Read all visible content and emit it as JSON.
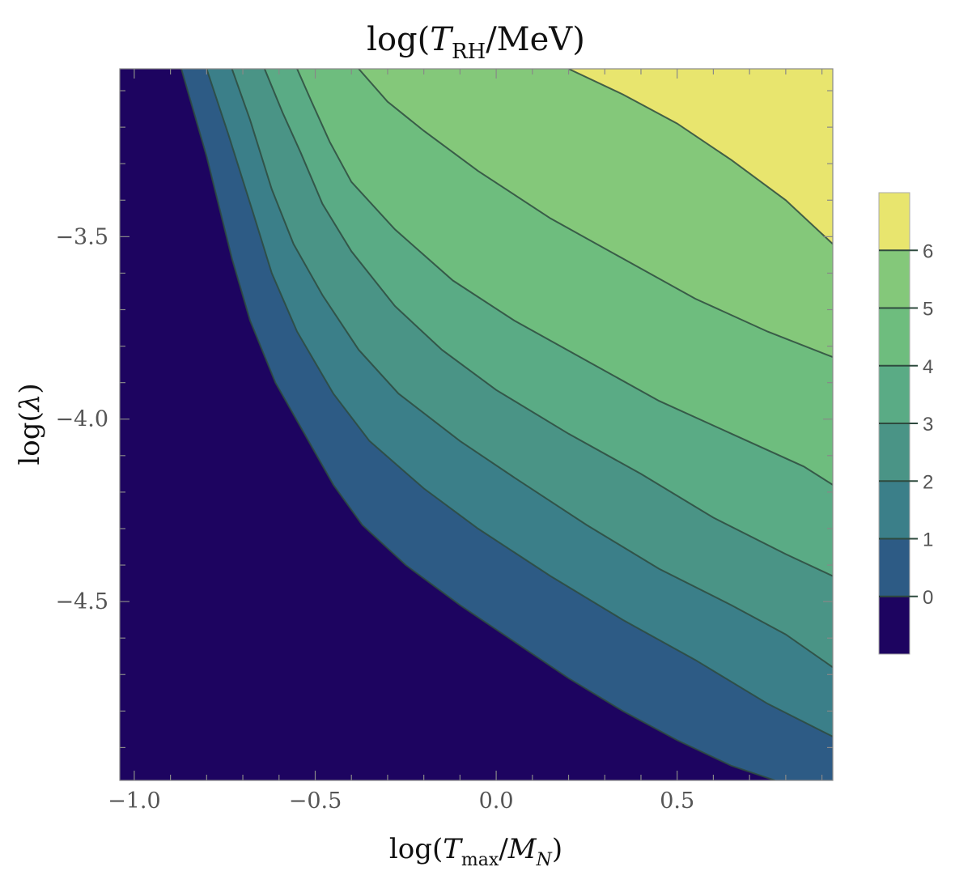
{
  "chart_data": {
    "type": "contour",
    "title": "log(T_RH/MeV)",
    "xlabel": "log(T_max/M_N)",
    "ylabel": "log(λ)",
    "xlim": [
      -1.04,
      0.93
    ],
    "ylim": [
      -4.99,
      -3.04
    ],
    "x_ticks": [
      -1.0,
      -0.5,
      0.0,
      0.5
    ],
    "x_tick_labels": [
      "−1.0",
      "−0.5",
      "0.0",
      "0.5"
    ],
    "y_ticks": [
      -3.5,
      -4.0,
      -4.5
    ],
    "y_tick_labels": [
      "−3.5",
      "−4.0",
      "−4.5"
    ],
    "contour_levels": [
      0,
      1,
      2,
      3,
      4,
      5,
      6
    ],
    "colorbar": {
      "ticks": [
        0,
        1,
        2,
        3,
        4,
        5,
        6
      ],
      "tick_labels": [
        "0",
        "1",
        "2",
        "3",
        "4",
        "5",
        "6"
      ],
      "range": [
        -1,
        7
      ]
    },
    "region_colors": [
      "#1d0460",
      "#2d5b85",
      "#3b7f89",
      "#4a9486",
      "#5aab85",
      "#6ebd7e",
      "#84c87a",
      "#e8e56e"
    ],
    "contours": [
      {
        "level": 0,
        "points": [
          [
            -0.87,
            -3.04
          ],
          [
            -0.8,
            -3.28
          ],
          [
            -0.73,
            -3.56
          ],
          [
            -0.68,
            -3.73
          ],
          [
            -0.61,
            -3.9
          ],
          [
            -0.53,
            -4.04
          ],
          [
            -0.45,
            -4.18
          ],
          [
            -0.37,
            -4.29
          ],
          [
            -0.25,
            -4.4
          ],
          [
            -0.1,
            -4.51
          ],
          [
            0.05,
            -4.61
          ],
          [
            0.2,
            -4.71
          ],
          [
            0.35,
            -4.8
          ],
          [
            0.5,
            -4.88
          ],
          [
            0.65,
            -4.95
          ],
          [
            0.77,
            -4.99
          ]
        ]
      },
      {
        "level": 1,
        "points": [
          [
            -0.8,
            -3.04
          ],
          [
            -0.74,
            -3.22
          ],
          [
            -0.67,
            -3.44
          ],
          [
            -0.62,
            -3.6
          ],
          [
            -0.55,
            -3.76
          ],
          [
            -0.45,
            -3.93
          ],
          [
            -0.35,
            -4.06
          ],
          [
            -0.2,
            -4.19
          ],
          [
            -0.05,
            -4.3
          ],
          [
            0.15,
            -4.43
          ],
          [
            0.35,
            -4.55
          ],
          [
            0.55,
            -4.66
          ],
          [
            0.75,
            -4.78
          ],
          [
            0.93,
            -4.87
          ]
        ]
      },
      {
        "level": 2,
        "points": [
          [
            -0.73,
            -3.04
          ],
          [
            -0.68,
            -3.18
          ],
          [
            -0.62,
            -3.37
          ],
          [
            -0.56,
            -3.52
          ],
          [
            -0.48,
            -3.66
          ],
          [
            -0.38,
            -3.81
          ],
          [
            -0.27,
            -3.93
          ],
          [
            -0.1,
            -4.06
          ],
          [
            0.05,
            -4.16
          ],
          [
            0.25,
            -4.29
          ],
          [
            0.45,
            -4.41
          ],
          [
            0.65,
            -4.51
          ],
          [
            0.8,
            -4.59
          ],
          [
            0.93,
            -4.68
          ]
        ]
      },
      {
        "level": 3,
        "points": [
          [
            -0.64,
            -3.04
          ],
          [
            -0.59,
            -3.16
          ],
          [
            -0.54,
            -3.27
          ],
          [
            -0.48,
            -3.41
          ],
          [
            -0.4,
            -3.54
          ],
          [
            -0.28,
            -3.69
          ],
          [
            -0.15,
            -3.81
          ],
          [
            0.0,
            -3.92
          ],
          [
            0.2,
            -4.04
          ],
          [
            0.4,
            -4.15
          ],
          [
            0.6,
            -4.27
          ],
          [
            0.8,
            -4.37
          ],
          [
            0.93,
            -4.43
          ]
        ]
      },
      {
        "level": 4,
        "points": [
          [
            -0.55,
            -3.04
          ],
          [
            -0.51,
            -3.13
          ],
          [
            -0.46,
            -3.24
          ],
          [
            -0.4,
            -3.35
          ],
          [
            -0.28,
            -3.48
          ],
          [
            -0.12,
            -3.62
          ],
          [
            0.05,
            -3.73
          ],
          [
            0.25,
            -3.84
          ],
          [
            0.45,
            -3.95
          ],
          [
            0.65,
            -4.04
          ],
          [
            0.85,
            -4.13
          ],
          [
            0.93,
            -4.18
          ]
        ]
      },
      {
        "level": 5,
        "points": [
          [
            -0.38,
            -3.04
          ],
          [
            -0.3,
            -3.13
          ],
          [
            -0.2,
            -3.21
          ],
          [
            -0.05,
            -3.32
          ],
          [
            0.15,
            -3.45
          ],
          [
            0.35,
            -3.56
          ],
          [
            0.55,
            -3.67
          ],
          [
            0.75,
            -3.76
          ],
          [
            0.93,
            -3.83
          ]
        ]
      },
      {
        "level": 6,
        "points": [
          [
            0.2,
            -3.04
          ],
          [
            0.35,
            -3.11
          ],
          [
            0.5,
            -3.19
          ],
          [
            0.65,
            -3.29
          ],
          [
            0.8,
            -3.4
          ],
          [
            0.93,
            -3.52
          ]
        ]
      }
    ]
  }
}
